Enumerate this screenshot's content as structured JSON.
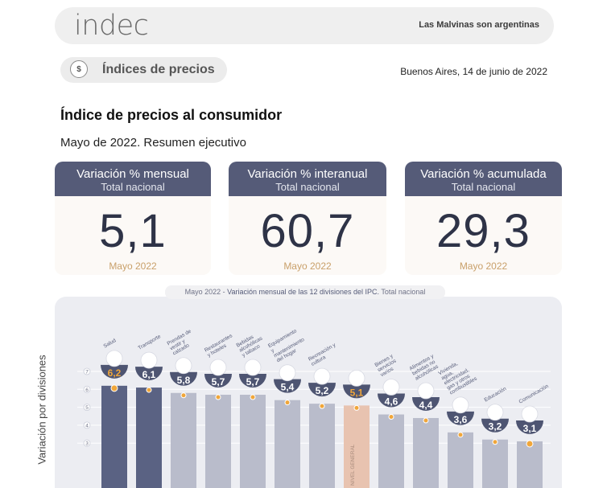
{
  "header": {
    "logo": "indec",
    "slogan": "Las Malvinas son argentinas"
  },
  "section": {
    "label": "Índices de precios",
    "icon": "price-tag-icon",
    "icon_glyph": "$"
  },
  "date": "Buenos Aires, 14 de junio de 2022",
  "title": "Índice de precios al consumidor",
  "subtitle": "Mayo de 2022. Resumen ejecutivo",
  "cards": [
    {
      "title": "Variación % mensual",
      "scope": "Total nacional",
      "value": "5,1",
      "period": "Mayo 2022"
    },
    {
      "title": "Variación % interanual",
      "scope": "Total nacional",
      "value": "60,7",
      "period": "Mayo 2022"
    },
    {
      "title": "Variación % acumulada",
      "scope": "Total nacional",
      "value": "29,3",
      "period": "Mayo 2022"
    }
  ],
  "chart_caption": {
    "prefix": "Mayo 2022 - ",
    "main": "Variación mensual de las 12 divisiones del IPC.",
    "suffix": " Total nacional"
  },
  "chart_data": {
    "type": "bar",
    "ylabel": "Variación por divisiones",
    "yticks": [
      3,
      4,
      5,
      6,
      7
    ],
    "categories": [
      "Salud",
      "Transporte",
      "Prendas de vestir y calzado",
      "Restaurantes y hoteles",
      "Bebidas alcohólicas y tabaco",
      "Equipamiento y mantenimiento del hogar",
      "Recreación y cultura",
      "NIVEL GENERAL",
      "Bienes y servicios varios",
      "Alimentos y bebidas no alcohólicas",
      "Vivienda, agua, electricidad, gas y otros combustibles",
      "Educación",
      "Comunicación"
    ],
    "values": [
      6.2,
      6.1,
      5.8,
      5.7,
      5.7,
      5.4,
      5.2,
      5.1,
      4.6,
      4.4,
      3.6,
      3.2,
      3.1
    ],
    "labels": [
      "6,2",
      "6,1",
      "5,8",
      "5,7",
      "5,7",
      "5,4",
      "5,2",
      "5,1",
      "4,6",
      "4,4",
      "3,6",
      "3,2",
      "3,1"
    ],
    "highlight_index": 7,
    "colors": {
      "dark": "#5a6283",
      "light": "#b9bccb",
      "general": "#e8c3b0",
      "label_bg": "#4e5572",
      "accent": "#f0a63a"
    }
  }
}
